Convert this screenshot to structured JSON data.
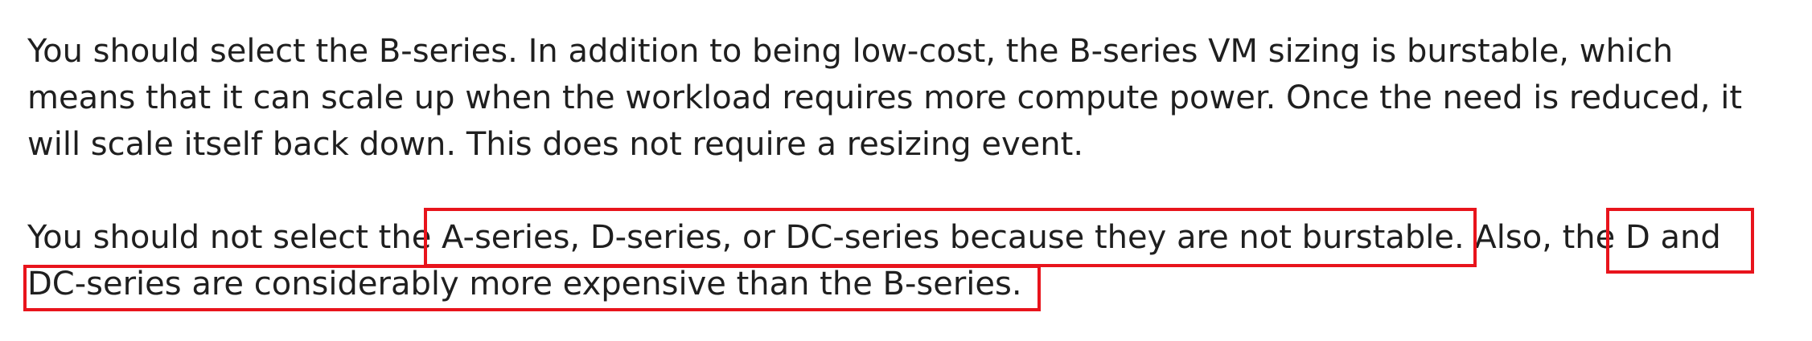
{
  "paragraphs": [
    {
      "lines": [
        "You should select the B-series. In addition to being low-cost, the B-series VM sizing is burstable, which",
        "means that it can scale up when the workload requires more compute power. Once the need is reduced, it",
        "will scale itself back down. This does not require a resizing event."
      ]
    },
    {
      "lines": [
        "You should not select the A-series, D-series, or DC-series because they are not burstable. Also, the D and",
        "DC-series are considerably more expensive than the B-series."
      ]
    }
  ],
  "highlight_color": "#e8141c",
  "highlights": [
    "A-series, D-series, or DC-series because they are not burstable.",
    "D and",
    "DC-series are considerably more expensive than the B-series."
  ]
}
